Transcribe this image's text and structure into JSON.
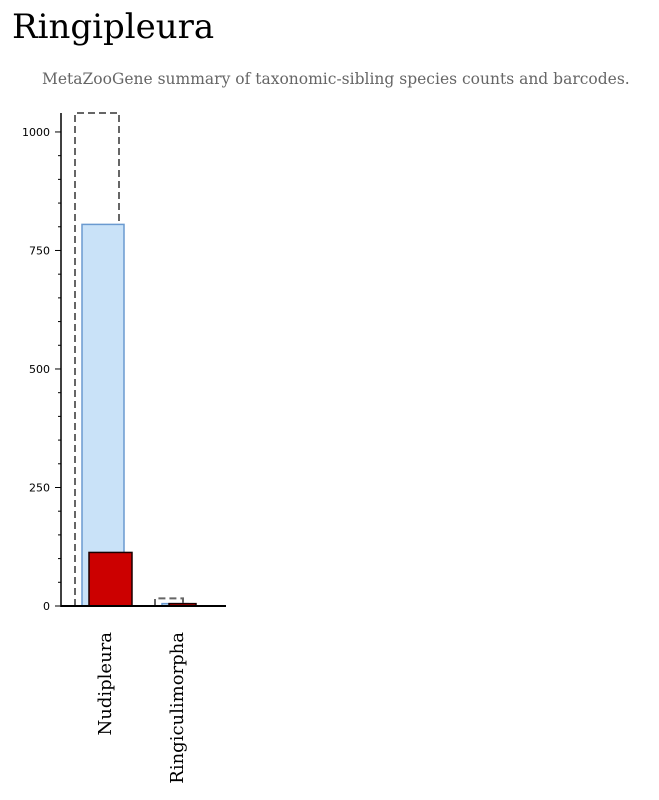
{
  "page": {
    "title": "Ringipleura",
    "subtitle": "MetaZooGene summary of taxonomic-sibling species counts and barcodes."
  },
  "chart_data": {
    "type": "bar",
    "categories": [
      "Nudipleura",
      "Ringiculimorpha"
    ],
    "series": [
      {
        "style": "dashed-outline",
        "values": [
          1040,
          16
        ]
      },
      {
        "style": "light-blue",
        "values": [
          805,
          5
        ]
      },
      {
        "style": "red",
        "values": [
          113,
          5
        ]
      }
    ],
    "ylim": [
      0,
      1040
    ],
    "yticks": [
      0,
      250,
      500,
      750,
      1000
    ],
    "minor_tick_step": 50,
    "grid": false,
    "colors": {
      "dashed_outline": "#666666",
      "light_blue_fill": "#c9e2f8",
      "light_blue_stroke": "#6a9ad0",
      "red_fill": "#cc0000",
      "red_stroke": "#1a0000"
    }
  }
}
